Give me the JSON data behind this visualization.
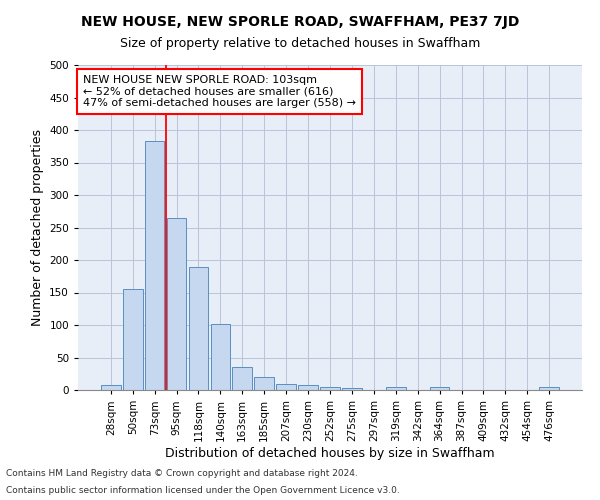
{
  "title": "NEW HOUSE, NEW SPORLE ROAD, SWAFFHAM, PE37 7JD",
  "subtitle": "Size of property relative to detached houses in Swaffham",
  "xlabel": "Distribution of detached houses by size in Swaffham",
  "ylabel": "Number of detached properties",
  "bar_color": "#c5d8f0",
  "bar_edge_color": "#5a8fc0",
  "categories": [
    "28sqm",
    "50sqm",
    "73sqm",
    "95sqm",
    "118sqm",
    "140sqm",
    "163sqm",
    "185sqm",
    "207sqm",
    "230sqm",
    "252sqm",
    "275sqm",
    "297sqm",
    "319sqm",
    "342sqm",
    "364sqm",
    "387sqm",
    "409sqm",
    "432sqm",
    "454sqm",
    "476sqm"
  ],
  "values": [
    7,
    155,
    383,
    265,
    190,
    102,
    36,
    20,
    10,
    8,
    5,
    3,
    0,
    4,
    0,
    4,
    0,
    0,
    0,
    0,
    4
  ],
  "ylim": [
    0,
    500
  ],
  "yticks": [
    0,
    50,
    100,
    150,
    200,
    250,
    300,
    350,
    400,
    450,
    500
  ],
  "red_line_bin": 3,
  "annotation_text": "NEW HOUSE NEW SPORLE ROAD: 103sqm\n← 52% of detached houses are smaller (616)\n47% of semi-detached houses are larger (558) →",
  "footer1": "Contains HM Land Registry data © Crown copyright and database right 2024.",
  "footer2": "Contains public sector information licensed under the Open Government Licence v3.0.",
  "bg_color": "#e8eef8",
  "grid_color": "#b8c4d8",
  "title_fontsize": 10,
  "subtitle_fontsize": 9,
  "axis_label_fontsize": 9,
  "tick_fontsize": 7.5,
  "annotation_fontsize": 8
}
